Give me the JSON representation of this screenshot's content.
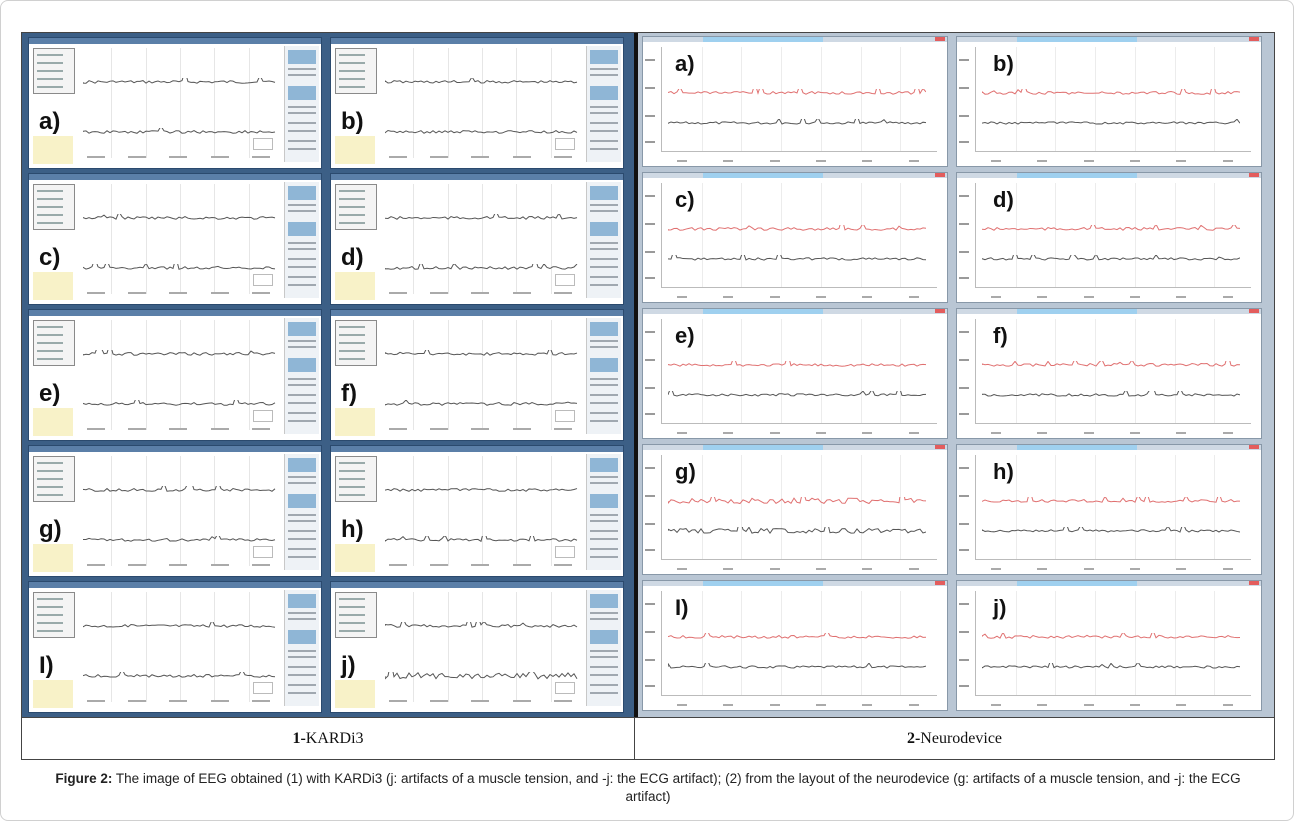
{
  "figure": {
    "left_panel_labels": [
      "a)",
      "b)",
      "c)",
      "d)",
      "e)",
      "f)",
      "g)",
      "h)",
      "I)",
      "j)"
    ],
    "right_panel_labels": [
      "a)",
      "b)",
      "c)",
      "d)",
      "e)",
      "f)",
      "g)",
      "h)",
      "I)",
      "j)"
    ],
    "columns": [
      {
        "number": "1-",
        "name": "KARDi3"
      },
      {
        "number": "2-",
        "name": "Neurodevice"
      }
    ],
    "colors": {
      "kardi_background": "#3c5f86",
      "neuro_background": "#b9c6d4",
      "trace_dark": "#555555",
      "trace_red": "#e07070"
    }
  },
  "caption": {
    "label": "Figure 2:",
    "text": "The image of EEG obtained (1) with KARDi3 (j: artifacts of a muscle tension, and -j: the ECG artifact); (2) from the layout of the neurodevice (g: artifacts of a muscle tension, and -j: the ECG artifact)"
  }
}
